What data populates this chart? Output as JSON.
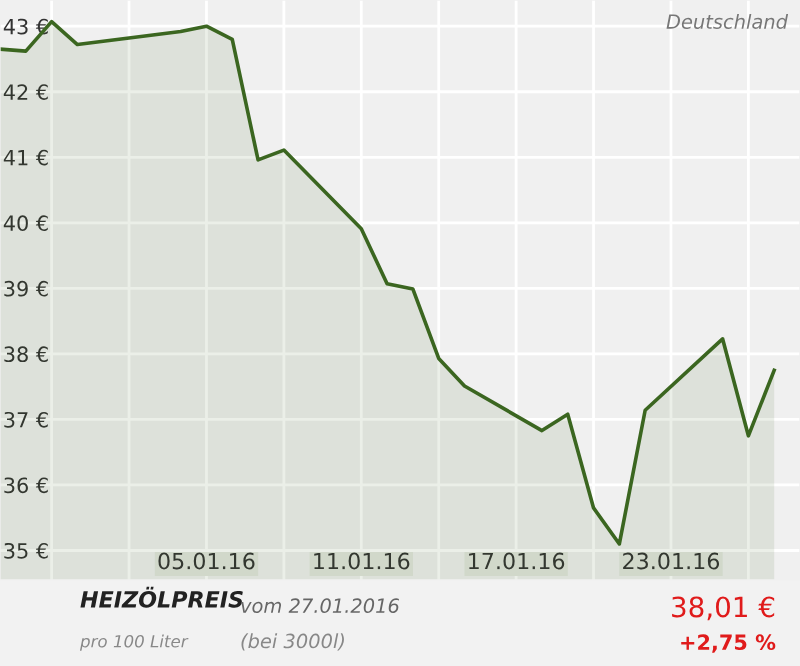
{
  "chart_data": {
    "type": "area",
    "title": "HEIZÖLPREIS",
    "annotations": [
      "Deutschland",
      "vom 27.01.2016",
      "pro 100 Liter",
      "(bei 3000l)",
      "38,01 €",
      "+2,75 %"
    ],
    "x": [
      "2015-12-28",
      "2015-12-29",
      "2015-12-30",
      "2015-12-31",
      "2016-01-04",
      "2016-01-05",
      "2016-01-06",
      "2016-01-07",
      "2016-01-08",
      "2016-01-11",
      "2016-01-12",
      "2016-01-13",
      "2016-01-14",
      "2016-01-15",
      "2016-01-18",
      "2016-01-19",
      "2016-01-20",
      "2016-01-21",
      "2016-01-22",
      "2016-01-25",
      "2016-01-26",
      "2016-01-27"
    ],
    "series": [
      {
        "color": "#3b6620",
        "values": [
          42.65,
          42.62,
          43.07,
          42.72,
          42.92,
          43.0,
          42.8,
          40.96,
          41.11,
          39.91,
          39.07,
          38.99,
          37.93,
          37.51,
          36.83,
          37.08,
          35.65,
          35.1,
          37.14,
          38.23,
          36.75,
          37.75
        ]
      }
    ],
    "xlim": [
      "2015-12-28",
      "2016-01-28"
    ],
    "xticks": [
      {
        "value": "2015-12-30",
        "label": null
      },
      {
        "value": "2016-01-02",
        "label": null
      },
      {
        "value": "2016-01-05",
        "label": "05.01.16"
      },
      {
        "value": "2016-01-08",
        "label": null
      },
      {
        "value": "2016-01-11",
        "label": "11.01.16"
      },
      {
        "value": "2016-01-14",
        "label": null
      },
      {
        "value": "2016-01-17",
        "label": "17.01.16"
      },
      {
        "value": "2016-01-20",
        "label": null
      },
      {
        "value": "2016-01-23",
        "label": "23.01.16"
      },
      {
        "value": "2016-01-26",
        "label": null
      }
    ],
    "ylim": [
      34.55,
      43.4
    ],
    "yticks": [
      {
        "value": 35,
        "label": "35 €"
      },
      {
        "value": 36,
        "label": "36 €"
      },
      {
        "value": 37,
        "label": "37 €"
      },
      {
        "value": 38,
        "label": "38 €"
      },
      {
        "value": 39,
        "label": "39 €"
      },
      {
        "value": 40,
        "label": "40 €"
      },
      {
        "value": 41,
        "label": "41 €"
      },
      {
        "value": 42,
        "label": "42 €"
      },
      {
        "value": 43,
        "label": "43 €"
      }
    ],
    "grid": true,
    "legend": false
  }
}
